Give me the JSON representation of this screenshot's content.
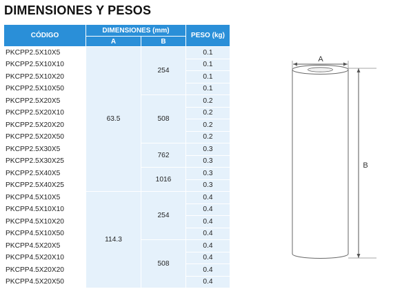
{
  "title": "DIMENSIONES Y PESOS",
  "table": {
    "headers": {
      "code": "CÓDIGO",
      "dimensions": "DIMENSIONES (mm)",
      "a": "A",
      "b": "B",
      "weight": "PESO (kg)"
    },
    "codes": [
      "PKCPP2.5X10X5",
      "PKCPP2.5X10X10",
      "PKCPP2.5X10X20",
      "PKCPP2.5X10X50",
      "PKCPP2.5X20X5",
      "PKCPP2.5X20X10",
      "PKCPP2.5X20X20",
      "PKCPP2.5X20X50",
      "PKCPP2.5X30X5",
      "PKCPP2.5X30X25",
      "PKCPP2.5X40X5",
      "PKCPP2.5X40X25",
      "PKCPP4.5X10X5",
      "PKCPP4.5X10X10",
      "PKCPP4.5X10X20",
      "PKCPP4.5X10X50",
      "PKCPP4.5X20X5",
      "PKCPP4.5X20X10",
      "PKCPP4.5X20X20",
      "PKCPP4.5X20X50"
    ],
    "weights": [
      "0.1",
      "0.1",
      "0.1",
      "0.1",
      "0.2",
      "0.2",
      "0.2",
      "0.2",
      "0.3",
      "0.3",
      "0.3",
      "0.3",
      "0.4",
      "0.4",
      "0.4",
      "0.4",
      "0.4",
      "0.4",
      "0.4",
      "0.4"
    ],
    "a_groups": [
      {
        "value": "63.5",
        "rows": 12
      },
      {
        "value": "114.3",
        "rows": 8
      }
    ],
    "b_groups": [
      {
        "value": "254",
        "rows": 4
      },
      {
        "value": "508",
        "rows": 4
      },
      {
        "value": "762",
        "rows": 2
      },
      {
        "value": "1016",
        "rows": 2
      },
      {
        "value": "254",
        "rows": 4
      },
      {
        "value": "508",
        "rows": 4
      }
    ]
  },
  "drawing": {
    "label_a": "A",
    "label_b": "B"
  }
}
